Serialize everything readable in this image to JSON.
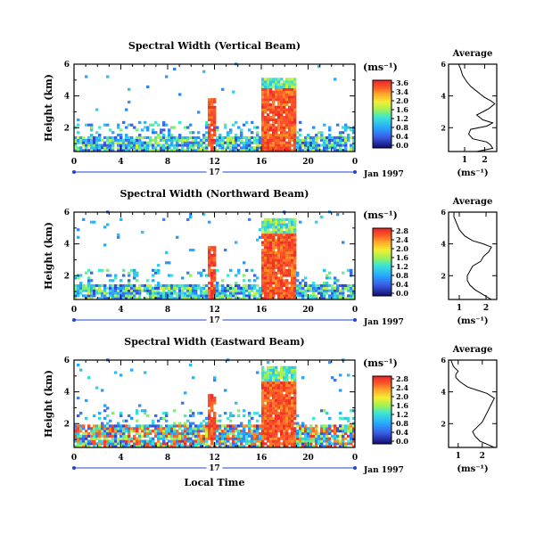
{
  "chart_data": [
    {
      "type": "heatmap",
      "title": "Spectral Width (Vertical Beam)",
      "ylabel": "Height (km)",
      "xlabel": "",
      "x_ticks": [
        "0",
        "4",
        "8",
        "12",
        "16",
        "20",
        "0"
      ],
      "y_ticks": [
        "2",
        "4",
        "6"
      ],
      "xlim": [
        0,
        24
      ],
      "ylim": [
        0.5,
        6
      ],
      "day_label": "17",
      "date_label": "Jan 1997",
      "colorbar": {
        "unit": "(ms⁻¹)",
        "ticks": [
          "3.6",
          "3.4",
          "2.0",
          "1.6",
          "1.2",
          "0.8",
          "0.4",
          "0.0"
        ]
      },
      "profile": {
        "title": "Average",
        "xlabel": "(ms⁻¹)",
        "x_ticks": [
          "1",
          "2"
        ],
        "y_ticks": [
          "2",
          "4",
          "6"
        ],
        "xlim": [
          0.2,
          2.6
        ],
        "ylim": [
          0.5,
          6
        ],
        "points": [
          [
            1.6,
            0.5
          ],
          [
            2.4,
            0.7
          ],
          [
            2.3,
            0.9
          ],
          [
            2.1,
            1.1
          ],
          [
            1.4,
            1.3
          ],
          [
            1.2,
            1.6
          ],
          [
            1.3,
            1.9
          ],
          [
            2.1,
            2.1
          ],
          [
            2.4,
            2.3
          ],
          [
            1.9,
            2.5
          ],
          [
            1.6,
            2.8
          ],
          [
            1.9,
            3.0
          ],
          [
            2.2,
            3.2
          ],
          [
            2.5,
            3.5
          ],
          [
            2.3,
            3.7
          ],
          [
            2.0,
            3.9
          ],
          [
            1.8,
            4.1
          ],
          [
            1.6,
            4.3
          ],
          [
            1.3,
            4.6
          ],
          [
            1.1,
            4.9
          ],
          [
            0.9,
            5.3
          ],
          [
            0.8,
            5.7
          ],
          [
            0.7,
            6.0
          ]
        ]
      }
    },
    {
      "type": "heatmap",
      "title": "Spectral Width (Northward Beam)",
      "ylabel": "Height (km)",
      "xlabel": "",
      "x_ticks": [
        "0",
        "4",
        "8",
        "12",
        "16",
        "20",
        "0"
      ],
      "y_ticks": [
        "2",
        "4",
        "6"
      ],
      "xlim": [
        0,
        24
      ],
      "ylim": [
        0.5,
        6
      ],
      "day_label": "17",
      "date_label": "Jan 1997",
      "colorbar": {
        "unit": "(ms⁻¹)",
        "ticks": [
          "2.8",
          "2.4",
          "2.0",
          "1.6",
          "1.2",
          "0.8",
          "0.4",
          "0.0"
        ]
      },
      "profile": {
        "title": "Average",
        "xlabel": "(ms⁻¹)",
        "x_ticks": [
          "1",
          "2"
        ],
        "y_ticks": [
          "2",
          "4",
          "6"
        ],
        "xlim": [
          0.6,
          2.4
        ],
        "ylim": [
          0.5,
          6
        ],
        "points": [
          [
            2.2,
            0.5
          ],
          [
            1.9,
            0.8
          ],
          [
            1.6,
            1.1
          ],
          [
            1.4,
            1.4
          ],
          [
            1.3,
            1.7
          ],
          [
            1.3,
            2.0
          ],
          [
            1.4,
            2.3
          ],
          [
            1.5,
            2.6
          ],
          [
            1.8,
            2.9
          ],
          [
            1.9,
            3.2
          ],
          [
            2.1,
            3.5
          ],
          [
            2.2,
            3.8
          ],
          [
            1.9,
            4.0
          ],
          [
            1.5,
            4.2
          ],
          [
            1.2,
            4.5
          ],
          [
            1.0,
            4.9
          ],
          [
            0.9,
            5.3
          ],
          [
            0.8,
            5.7
          ],
          [
            0.8,
            6.0
          ]
        ]
      }
    },
    {
      "type": "heatmap",
      "title": "Spectral Width (Eastward Beam)",
      "ylabel": "Height (km)",
      "xlabel": "Local Time",
      "x_ticks": [
        "0",
        "4",
        "8",
        "12",
        "16",
        "20",
        "0"
      ],
      "y_ticks": [
        "2",
        "4",
        "6"
      ],
      "xlim": [
        0,
        24
      ],
      "ylim": [
        0.5,
        6
      ],
      "day_label": "17",
      "date_label": "Jan 1997",
      "colorbar": {
        "unit": "(ms⁻¹)",
        "ticks": [
          "2.8",
          "2.4",
          "2.0",
          "1.6",
          "1.2",
          "0.8",
          "0.4",
          "0.0"
        ]
      },
      "profile": {
        "title": "Average",
        "xlabel": "(ms⁻¹)",
        "x_ticks": [
          "1",
          "2"
        ],
        "y_ticks": [
          "2",
          "4",
          "6"
        ],
        "xlim": [
          0.6,
          2.6
        ],
        "ylim": [
          0.5,
          6
        ],
        "points": [
          [
            2.5,
            0.5
          ],
          [
            2.2,
            0.7
          ],
          [
            1.9,
            0.9
          ],
          [
            1.7,
            1.2
          ],
          [
            1.6,
            1.5
          ],
          [
            1.8,
            1.8
          ],
          [
            2.0,
            2.1
          ],
          [
            2.1,
            2.4
          ],
          [
            2.2,
            2.7
          ],
          [
            2.3,
            3.0
          ],
          [
            2.4,
            3.3
          ],
          [
            2.5,
            3.6
          ],
          [
            2.2,
            3.9
          ],
          [
            1.8,
            4.1
          ],
          [
            1.4,
            4.3
          ],
          [
            1.1,
            4.6
          ],
          [
            0.9,
            4.9
          ],
          [
            0.9,
            5.1
          ],
          [
            1.0,
            5.3
          ],
          [
            0.8,
            5.6
          ],
          [
            0.7,
            6.0
          ]
        ]
      }
    }
  ]
}
